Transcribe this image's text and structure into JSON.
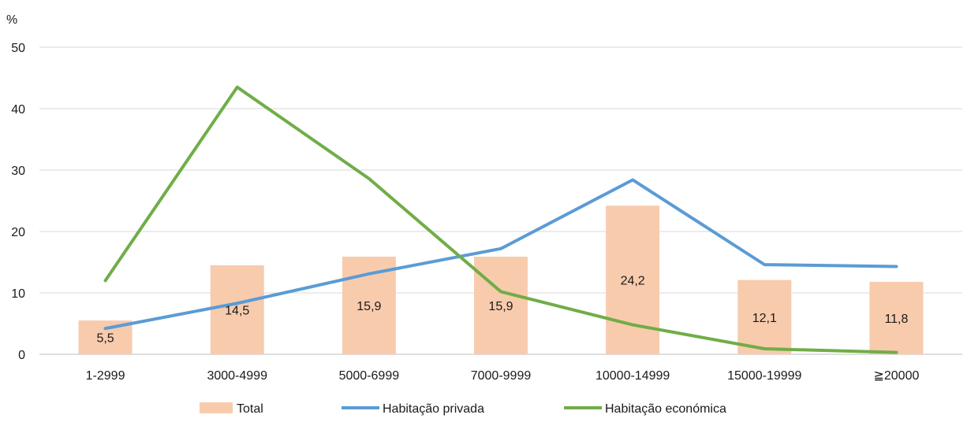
{
  "chart_data": {
    "type": "bar",
    "y_unit_label": "%",
    "categories": [
      "1-2999",
      "3000-4999",
      "5000-6999",
      "7000-9999",
      "10000-14999",
      "15000-19999",
      "≧20000"
    ],
    "ylim": [
      0,
      50
    ],
    "yticks": [
      0,
      10,
      20,
      30,
      40,
      50
    ],
    "grid": true,
    "legend_position": "bottom",
    "series": [
      {
        "name": "Total",
        "kind": "bar",
        "color": "#f8cbad",
        "values": [
          5.5,
          14.5,
          15.9,
          15.9,
          24.2,
          12.1,
          11.8
        ],
        "data_labels": [
          "5,5",
          "14,5",
          "15,9",
          "15,9",
          "24,2",
          "12,1",
          "11,8"
        ]
      },
      {
        "name": "Habitação privada",
        "kind": "line",
        "color": "#5b9bd5",
        "values": [
          4.2,
          8.3,
          13.1,
          17.2,
          28.4,
          14.6,
          14.3
        ]
      },
      {
        "name": "Habitação económica",
        "kind": "line",
        "color": "#70ad47",
        "values": [
          12.0,
          43.5,
          28.6,
          10.2,
          4.8,
          0.9,
          0.3
        ]
      }
    ]
  }
}
